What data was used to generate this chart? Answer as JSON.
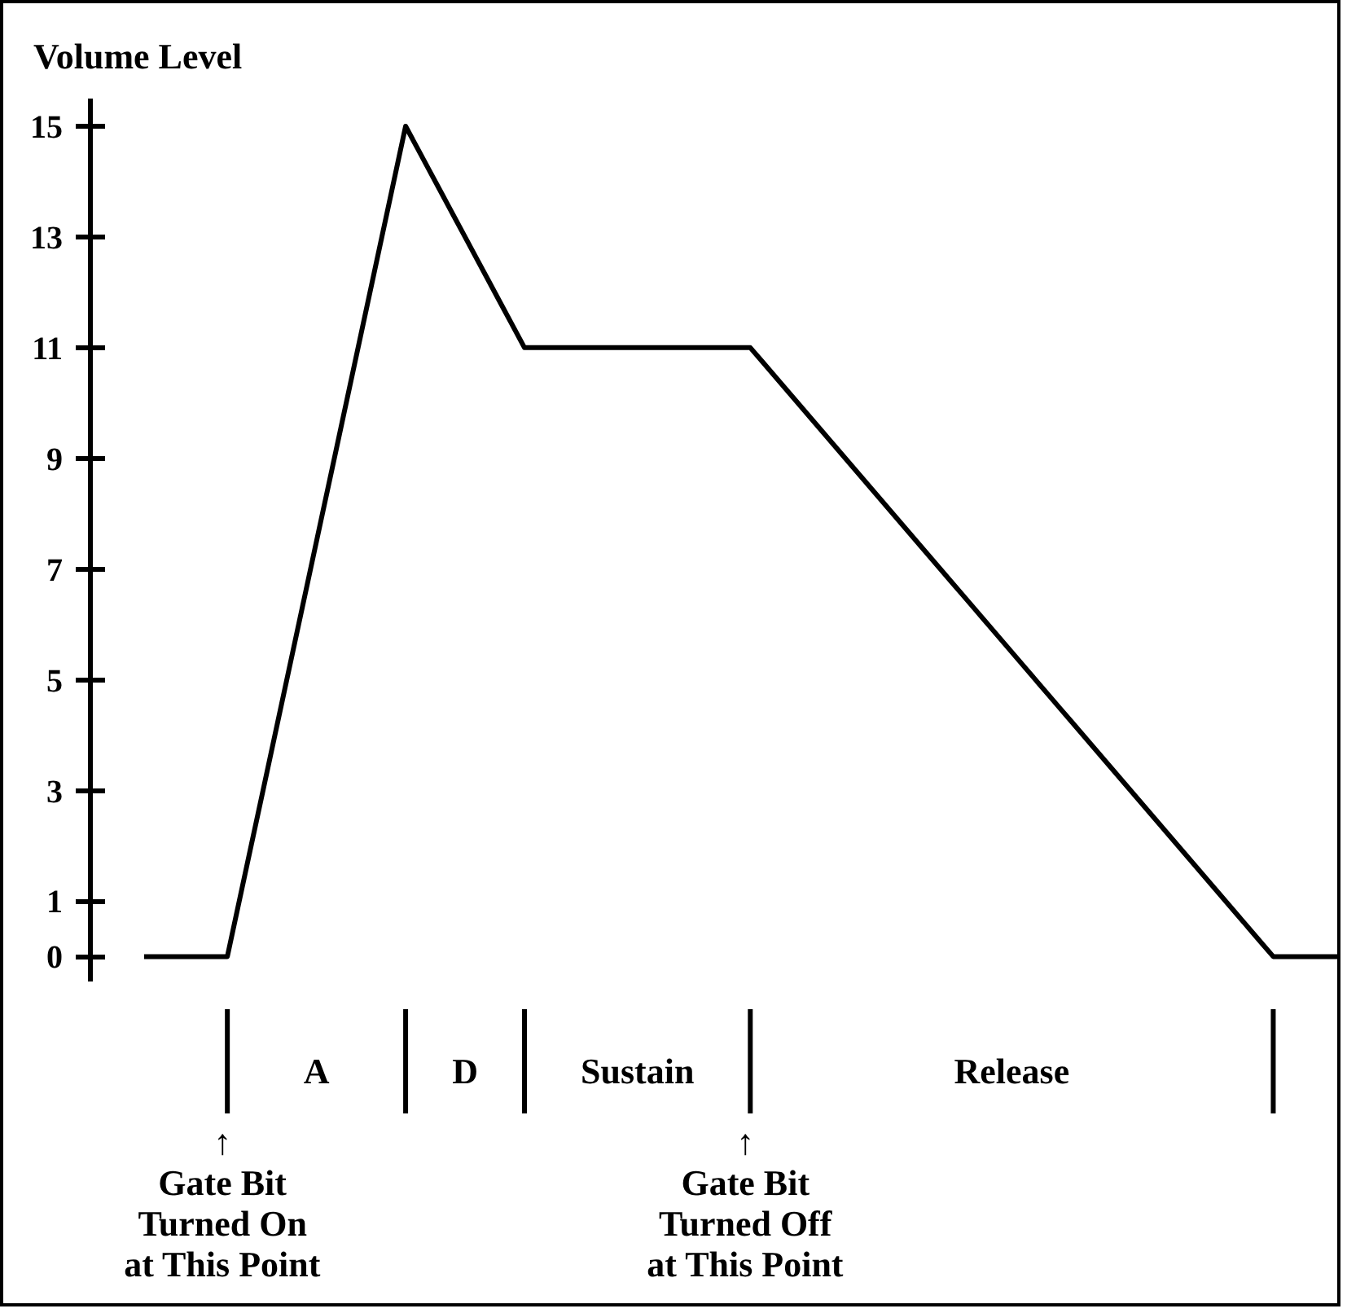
{
  "chart_data": {
    "type": "line",
    "ylabel": "Volume Level",
    "categories": [
      null,
      null,
      null,
      null,
      null,
      null,
      null,
      null,
      null,
      null,
      null,
      null,
      null,
      null,
      null,
      null,
      null,
      null,
      null,
      null,
      null,
      null,
      null,
      null,
      null,
      null,
      null,
      null,
      null,
      null,
      null,
      null,
      null,
      null,
      null,
      null,
      null,
      null,
      null,
      null,
      null,
      null,
      null,
      null,
      null,
      null,
      null,
      null,
      null,
      null,
      null,
      null,
      null,
      null,
      null,
      null,
      null,
      null,
      null,
      null,
      null,
      null,
      null,
      null,
      null,
      null,
      null,
      null,
      null,
      null,
      null,
      null,
      null,
      null,
      null,
      null,
      null,
      null,
      null,
      null,
      null,
      null,
      null,
      null,
      null,
      null,
      null,
      null,
      null,
      null,
      null,
      null,
      null,
      null,
      null,
      null,
      null,
      null,
      null,
      null,
      null,
      null
    ],
    "series": [
      {
        "color": "#000000",
        "values": [
          0,
          0,
          0,
          0,
          0,
          0,
          0,
          0,
          1,
          2,
          3,
          4,
          5,
          6,
          7,
          8,
          9,
          10,
          11,
          12,
          13,
          14,
          15,
          14.6,
          14.2,
          13.8,
          13.4,
          13,
          12.6,
          12.2,
          11.8,
          11.4,
          11,
          11,
          11,
          11,
          11,
          11,
          11,
          11,
          11,
          11,
          11,
          11,
          11,
          11,
          11,
          11,
          11,
          11,
          11,
          11,
          10.75,
          10.5,
          10.25,
          10,
          9.75,
          9.5,
          9.25,
          9,
          8.75,
          8.5,
          8.25,
          8,
          7.75,
          7.5,
          7.25,
          7,
          6.75,
          6.5,
          6.25,
          6,
          5.75,
          5.5,
          5.25,
          5,
          4.75,
          4.5,
          4.25,
          4,
          3.75,
          3.5,
          3.25,
          3,
          2.75,
          2.5,
          2.25,
          2,
          1.75,
          1.5,
          1.25,
          1,
          0.75,
          0.5,
          0.25,
          0,
          0,
          0,
          0,
          0,
          0,
          0
        ]
      }
    ],
    "ylim": [
      -0.45,
      15.5
    ],
    "yticks": [
      0,
      1,
      3,
      5,
      7,
      9,
      11,
      13,
      15
    ],
    "grid": false,
    "tick_labels": "y",
    "annotations": [
      "A",
      "D",
      "Sustain",
      "Release",
      "↑\nGate Bit\nTurned On\nat This Point",
      "↑\nGate Bit\nTurned Off\nat This Point"
    ]
  }
}
